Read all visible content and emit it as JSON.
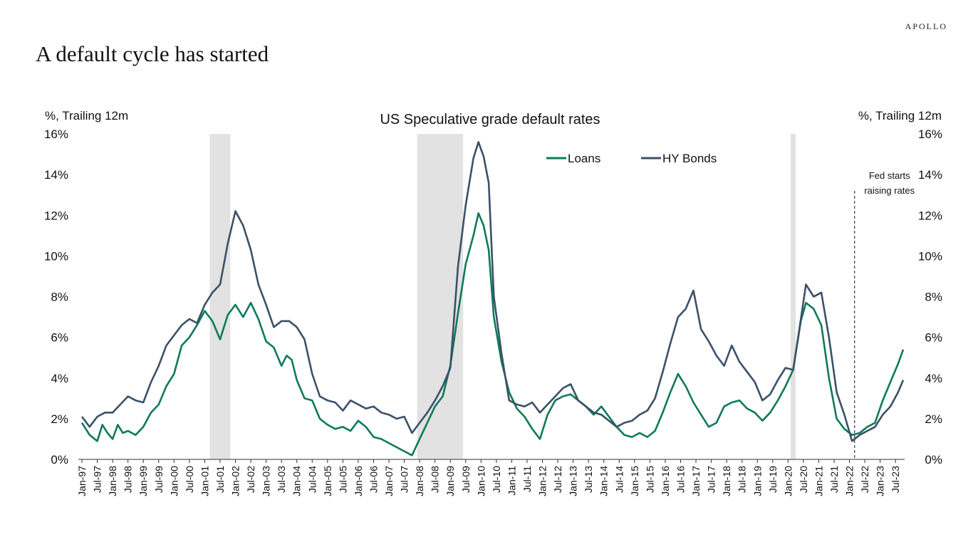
{
  "brand": "APOLLO",
  "page_title": "A default cycle has started",
  "colors": {
    "loans": "#0e7a5a",
    "hy_bonds": "#3b5168",
    "recession": "#e2e2e2"
  },
  "chart_data": {
    "type": "line",
    "title": "US Speculative grade default rates",
    "ylabel_left": "%, Trailing 12m",
    "ylabel_right": "%, Trailing 12m",
    "ylim": [
      0,
      16
    ],
    "yticks": [
      "0%",
      "2%",
      "4%",
      "6%",
      "8%",
      "10%",
      "12%",
      "14%",
      "16%"
    ],
    "xlim": [
      "1997-01",
      "2023-10"
    ],
    "xtick_labels": [
      "Jan-97",
      "Jul-97",
      "Jan-98",
      "Jul-98",
      "Jan-99",
      "Jul-99",
      "Jan-00",
      "Jul-00",
      "Jan-01",
      "Jul-01",
      "Jan-02",
      "Jul-02",
      "Jan-03",
      "Jul-03",
      "Jan-04",
      "Jul-04",
      "Jan-05",
      "Jul-05",
      "Jan-06",
      "Jul-06",
      "Jan-07",
      "Jul-07",
      "Jan-08",
      "Jul-08",
      "Jan-09",
      "Jul-09",
      "Jan-10",
      "Jul-10",
      "Jan-11",
      "Jul-11",
      "Jan-12",
      "Jul-12",
      "Jan-13",
      "Jul-13",
      "Jan-14",
      "Jul-14",
      "Jan-15",
      "Jul-15",
      "Jan-16",
      "Jul-16",
      "Jan-17",
      "Jul-17",
      "Jan-18",
      "Jul-18",
      "Jan-19",
      "Jul-19",
      "Jan-20",
      "Jul-20",
      "Jan-21",
      "Jul-21",
      "Jan-22",
      "Jul-22",
      "Jan-23",
      "Jul-23"
    ],
    "legend_position": "top-center",
    "recessions": [
      [
        "2001-03",
        "2001-11"
      ],
      [
        "2007-12",
        "2009-06"
      ],
      [
        "2020-02",
        "2020-04"
      ]
    ],
    "annotation": {
      "text_line1": "Fed starts",
      "text_line2": "raising rates",
      "date": "2022-03"
    },
    "series": [
      {
        "name": "Loans",
        "points": [
          [
            "1997-01",
            1.8
          ],
          [
            "1997-04",
            1.2
          ],
          [
            "1997-07",
            0.9
          ],
          [
            "1997-09",
            1.7
          ],
          [
            "1997-11",
            1.3
          ],
          [
            "1998-01",
            1.0
          ],
          [
            "1998-03",
            1.7
          ],
          [
            "1998-05",
            1.3
          ],
          [
            "1998-07",
            1.4
          ],
          [
            "1998-10",
            1.2
          ],
          [
            "1999-01",
            1.6
          ],
          [
            "1999-04",
            2.3
          ],
          [
            "1999-07",
            2.7
          ],
          [
            "1999-10",
            3.6
          ],
          [
            "2000-01",
            4.2
          ],
          [
            "2000-04",
            5.6
          ],
          [
            "2000-07",
            6.0
          ],
          [
            "2000-10",
            6.6
          ],
          [
            "2001-01",
            7.3
          ],
          [
            "2001-04",
            6.8
          ],
          [
            "2001-07",
            5.9
          ],
          [
            "2001-10",
            7.1
          ],
          [
            "2002-01",
            7.6
          ],
          [
            "2002-04",
            7.0
          ],
          [
            "2002-07",
            7.7
          ],
          [
            "2002-10",
            6.9
          ],
          [
            "2003-01",
            5.8
          ],
          [
            "2003-04",
            5.5
          ],
          [
            "2003-07",
            4.6
          ],
          [
            "2003-09",
            5.1
          ],
          [
            "2003-11",
            4.9
          ],
          [
            "2004-01",
            3.9
          ],
          [
            "2004-04",
            3.0
          ],
          [
            "2004-07",
            2.9
          ],
          [
            "2004-10",
            2.0
          ],
          [
            "2005-01",
            1.7
          ],
          [
            "2005-04",
            1.5
          ],
          [
            "2005-07",
            1.6
          ],
          [
            "2005-10",
            1.4
          ],
          [
            "2006-01",
            1.9
          ],
          [
            "2006-04",
            1.6
          ],
          [
            "2006-07",
            1.1
          ],
          [
            "2006-10",
            1.0
          ],
          [
            "2007-01",
            0.8
          ],
          [
            "2007-04",
            0.6
          ],
          [
            "2007-07",
            0.4
          ],
          [
            "2007-10",
            0.2
          ],
          [
            "2008-01",
            1.0
          ],
          [
            "2008-04",
            1.8
          ],
          [
            "2008-07",
            2.6
          ],
          [
            "2008-10",
            3.1
          ],
          [
            "2009-01",
            4.6
          ],
          [
            "2009-04",
            7.2
          ],
          [
            "2009-07",
            9.6
          ],
          [
            "2009-10",
            11.0
          ],
          [
            "2009-12",
            12.1
          ],
          [
            "2010-02",
            11.5
          ],
          [
            "2010-04",
            10.3
          ],
          [
            "2010-06",
            7.0
          ],
          [
            "2010-09",
            4.8
          ],
          [
            "2010-12",
            3.3
          ],
          [
            "2011-03",
            2.5
          ],
          [
            "2011-06",
            2.1
          ],
          [
            "2011-09",
            1.5
          ],
          [
            "2011-12",
            1.0
          ],
          [
            "2012-03",
            2.2
          ],
          [
            "2012-06",
            2.9
          ],
          [
            "2012-09",
            3.1
          ],
          [
            "2012-12",
            3.2
          ],
          [
            "2013-03",
            2.9
          ],
          [
            "2013-06",
            2.6
          ],
          [
            "2013-09",
            2.2
          ],
          [
            "2013-12",
            2.6
          ],
          [
            "2014-03",
            2.1
          ],
          [
            "2014-06",
            1.6
          ],
          [
            "2014-09",
            1.2
          ],
          [
            "2014-12",
            1.1
          ],
          [
            "2015-03",
            1.3
          ],
          [
            "2015-06",
            1.1
          ],
          [
            "2015-09",
            1.4
          ],
          [
            "2015-12",
            2.3
          ],
          [
            "2016-03",
            3.3
          ],
          [
            "2016-06",
            4.2
          ],
          [
            "2016-09",
            3.6
          ],
          [
            "2016-12",
            2.8
          ],
          [
            "2017-03",
            2.2
          ],
          [
            "2017-06",
            1.6
          ],
          [
            "2017-09",
            1.8
          ],
          [
            "2017-12",
            2.6
          ],
          [
            "2018-03",
            2.8
          ],
          [
            "2018-06",
            2.9
          ],
          [
            "2018-09",
            2.5
          ],
          [
            "2018-12",
            2.3
          ],
          [
            "2019-03",
            1.9
          ],
          [
            "2019-06",
            2.3
          ],
          [
            "2019-09",
            2.9
          ],
          [
            "2019-12",
            3.6
          ],
          [
            "2020-03",
            4.4
          ],
          [
            "2020-06",
            6.8
          ],
          [
            "2020-08",
            7.7
          ],
          [
            "2020-11",
            7.4
          ],
          [
            "2021-02",
            6.6
          ],
          [
            "2021-05",
            4.0
          ],
          [
            "2021-08",
            2.0
          ],
          [
            "2021-11",
            1.5
          ],
          [
            "2022-02",
            1.2
          ],
          [
            "2022-05",
            1.3
          ],
          [
            "2022-08",
            1.6
          ],
          [
            "2022-11",
            1.8
          ],
          [
            "2023-02",
            2.9
          ],
          [
            "2023-05",
            3.8
          ],
          [
            "2023-08",
            4.7
          ],
          [
            "2023-10",
            5.4
          ]
        ]
      },
      {
        "name": "HY Bonds",
        "points": [
          [
            "1997-01",
            2.1
          ],
          [
            "1997-04",
            1.6
          ],
          [
            "1997-07",
            2.1
          ],
          [
            "1997-10",
            2.3
          ],
          [
            "1998-01",
            2.3
          ],
          [
            "1998-04",
            2.7
          ],
          [
            "1998-07",
            3.1
          ],
          [
            "1998-10",
            2.9
          ],
          [
            "1999-01",
            2.8
          ],
          [
            "1999-04",
            3.8
          ],
          [
            "1999-07",
            4.6
          ],
          [
            "1999-10",
            5.6
          ],
          [
            "2000-01",
            6.1
          ],
          [
            "2000-04",
            6.6
          ],
          [
            "2000-07",
            6.9
          ],
          [
            "2000-10",
            6.7
          ],
          [
            "2001-01",
            7.6
          ],
          [
            "2001-04",
            8.2
          ],
          [
            "2001-07",
            8.6
          ],
          [
            "2001-10",
            10.6
          ],
          [
            "2002-01",
            12.2
          ],
          [
            "2002-04",
            11.5
          ],
          [
            "2002-07",
            10.3
          ],
          [
            "2002-10",
            8.6
          ],
          [
            "2003-01",
            7.6
          ],
          [
            "2003-04",
            6.5
          ],
          [
            "2003-07",
            6.8
          ],
          [
            "2003-10",
            6.8
          ],
          [
            "2004-01",
            6.5
          ],
          [
            "2004-04",
            5.9
          ],
          [
            "2004-07",
            4.2
          ],
          [
            "2004-10",
            3.1
          ],
          [
            "2005-01",
            2.9
          ],
          [
            "2005-04",
            2.8
          ],
          [
            "2005-07",
            2.4
          ],
          [
            "2005-10",
            2.9
          ],
          [
            "2006-01",
            2.7
          ],
          [
            "2006-04",
            2.5
          ],
          [
            "2006-07",
            2.6
          ],
          [
            "2006-10",
            2.3
          ],
          [
            "2007-01",
            2.2
          ],
          [
            "2007-04",
            2.0
          ],
          [
            "2007-07",
            2.1
          ],
          [
            "2007-10",
            1.3
          ],
          [
            "2008-01",
            1.8
          ],
          [
            "2008-04",
            2.3
          ],
          [
            "2008-07",
            2.9
          ],
          [
            "2008-10",
            3.6
          ],
          [
            "2009-01",
            4.5
          ],
          [
            "2009-04",
            9.5
          ],
          [
            "2009-07",
            12.5
          ],
          [
            "2009-10",
            14.8
          ],
          [
            "2009-12",
            15.6
          ],
          [
            "2010-02",
            14.9
          ],
          [
            "2010-04",
            13.6
          ],
          [
            "2010-06",
            8.0
          ],
          [
            "2010-09",
            5.2
          ],
          [
            "2010-12",
            2.9
          ],
          [
            "2011-03",
            2.7
          ],
          [
            "2011-06",
            2.6
          ],
          [
            "2011-09",
            2.8
          ],
          [
            "2011-12",
            2.3
          ],
          [
            "2012-03",
            2.7
          ],
          [
            "2012-06",
            3.1
          ],
          [
            "2012-09",
            3.5
          ],
          [
            "2012-12",
            3.7
          ],
          [
            "2013-03",
            2.9
          ],
          [
            "2013-06",
            2.6
          ],
          [
            "2013-09",
            2.3
          ],
          [
            "2013-12",
            2.2
          ],
          [
            "2014-03",
            1.9
          ],
          [
            "2014-06",
            1.6
          ],
          [
            "2014-09",
            1.8
          ],
          [
            "2014-12",
            1.9
          ],
          [
            "2015-03",
            2.2
          ],
          [
            "2015-06",
            2.4
          ],
          [
            "2015-09",
            3.0
          ],
          [
            "2015-12",
            4.3
          ],
          [
            "2016-03",
            5.7
          ],
          [
            "2016-06",
            7.0
          ],
          [
            "2016-09",
            7.4
          ],
          [
            "2016-12",
            8.3
          ],
          [
            "2017-03",
            6.4
          ],
          [
            "2017-06",
            5.8
          ],
          [
            "2017-09",
            5.1
          ],
          [
            "2017-12",
            4.6
          ],
          [
            "2018-03",
            5.6
          ],
          [
            "2018-06",
            4.8
          ],
          [
            "2018-09",
            4.3
          ],
          [
            "2018-12",
            3.8
          ],
          [
            "2019-03",
            2.9
          ],
          [
            "2019-06",
            3.2
          ],
          [
            "2019-09",
            3.9
          ],
          [
            "2019-12",
            4.5
          ],
          [
            "2020-03",
            4.4
          ],
          [
            "2020-06",
            6.9
          ],
          [
            "2020-08",
            8.6
          ],
          [
            "2020-11",
            8.0
          ],
          [
            "2021-02",
            8.2
          ],
          [
            "2021-05",
            6.0
          ],
          [
            "2021-08",
            3.3
          ],
          [
            "2021-11",
            2.2
          ],
          [
            "2022-02",
            0.9
          ],
          [
            "2022-05",
            1.2
          ],
          [
            "2022-08",
            1.4
          ],
          [
            "2022-11",
            1.6
          ],
          [
            "2023-02",
            2.2
          ],
          [
            "2023-05",
            2.6
          ],
          [
            "2023-08",
            3.3
          ],
          [
            "2023-10",
            3.9
          ]
        ]
      }
    ]
  }
}
